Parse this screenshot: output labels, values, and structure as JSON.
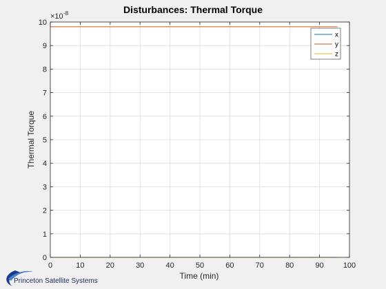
{
  "chart_data": {
    "type": "line",
    "title": "Disturbances: Thermal Torque",
    "xlabel": "Time (min)",
    "ylabel": "Thermal Torque",
    "exponent_label": "×10",
    "exponent_power": "-8",
    "xlim": [
      0,
      100
    ],
    "ylim": [
      0,
      10
    ],
    "x_ticks": [
      0,
      10,
      20,
      30,
      40,
      50,
      60,
      70,
      80,
      90,
      100
    ],
    "y_ticks": [
      0,
      1,
      2,
      3,
      4,
      5,
      6,
      7,
      8,
      9,
      10
    ],
    "grid": true,
    "legend_position": "top-right",
    "series": [
      {
        "name": "x",
        "color": "#0072bd",
        "x": [
          0,
          96
        ],
        "y": [
          0,
          0
        ]
      },
      {
        "name": "y",
        "color": "#d95319",
        "x": [
          0,
          96
        ],
        "y": [
          9.8,
          9.8
        ]
      },
      {
        "name": "z",
        "color": "#edb120",
        "x": [
          0,
          96
        ],
        "y": [
          0,
          0
        ]
      }
    ]
  },
  "logo": {
    "text": "Princeton Satellite Systems",
    "color": "#1b3a8a"
  }
}
